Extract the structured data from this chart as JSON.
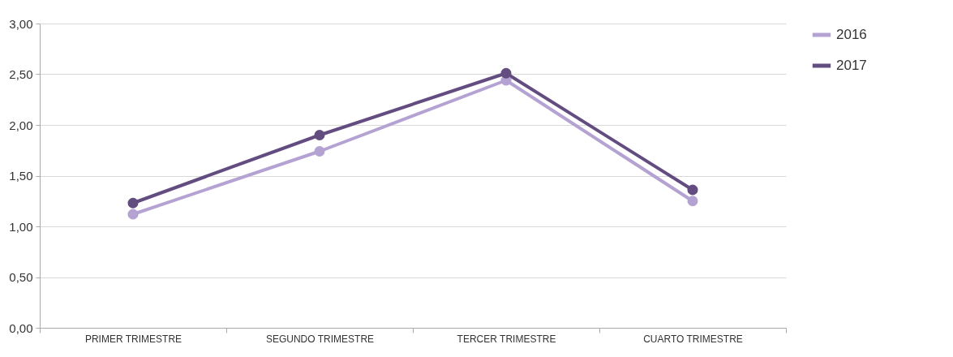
{
  "chart_data": {
    "type": "line",
    "categories": [
      "PRIMER TRIMESTRE",
      "SEGUNDO TRIMESTRE",
      "TERCER TRIMESTRE",
      "CUARTO TRIMESTRE"
    ],
    "series": [
      {
        "name": "2016",
        "color": "#b4a2d2",
        "values": [
          1.12,
          1.74,
          2.44,
          1.25
        ]
      },
      {
        "name": "2017",
        "color": "#634d80",
        "values": [
          1.23,
          1.9,
          2.51,
          1.36
        ]
      }
    ],
    "ylim": [
      0,
      3
    ],
    "yticks": [
      {
        "value": 0,
        "label": "0,00"
      },
      {
        "value": 0.5,
        "label": "0,50"
      },
      {
        "value": 1,
        "label": "1,00"
      },
      {
        "value": 1.5,
        "label": "1,50"
      },
      {
        "value": 2,
        "label": "2,00"
      },
      {
        "value": 2.5,
        "label": "2,50"
      },
      {
        "value": 3,
        "label": "3,00"
      }
    ],
    "grid": "y",
    "legend": "right",
    "marker": "circle",
    "line_style": "solid"
  }
}
